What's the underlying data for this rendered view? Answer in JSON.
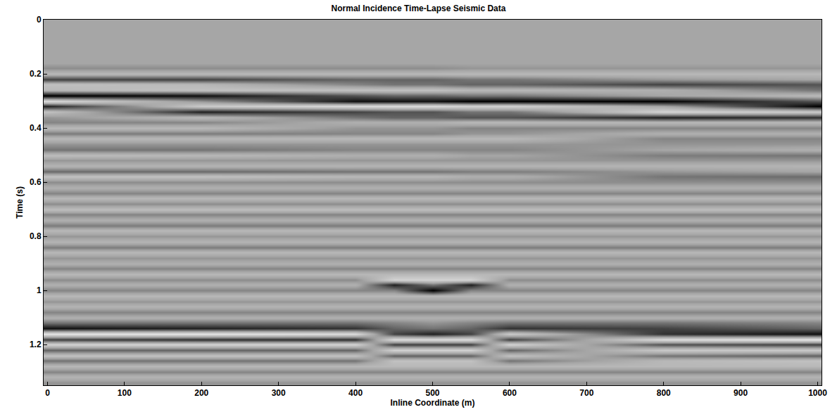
{
  "chart_data": {
    "type": "heatmap",
    "title": "Normal Incidence Time-Lapse Seismic Data",
    "x_label": "Inline Coordinate (m)",
    "y_label": "Time (s)",
    "xlim": [
      -5,
      1005
    ],
    "xticks": [
      0,
      100,
      200,
      300,
      400,
      500,
      600,
      700,
      800,
      900,
      1000
    ],
    "ylim": [
      1.35,
      0
    ],
    "yticks": [
      0,
      0.2,
      0.4,
      0.6,
      0.8,
      1,
      1.2
    ],
    "zlim": [
      -1,
      1
    ],
    "x": [
      0,
      200,
      400,
      450,
      500,
      550,
      600,
      800,
      1000
    ],
    "y": [
      0,
      0.02,
      0.04,
      0.06,
      0.08,
      0.1,
      0.12,
      0.14,
      0.16,
      0.18,
      0.2,
      0.22,
      0.24,
      0.26,
      0.28,
      0.3,
      0.32,
      0.34,
      0.36,
      0.38,
      0.4,
      0.42,
      0.44,
      0.46,
      0.48,
      0.5,
      0.52,
      0.54,
      0.56,
      0.58,
      0.6,
      0.62,
      0.64,
      0.66,
      0.68,
      0.7,
      0.72,
      0.74,
      0.76,
      0.78,
      0.8,
      0.82,
      0.84,
      0.86,
      0.88,
      0.9,
      0.92,
      0.94,
      0.96,
      0.98,
      1,
      1.02,
      1.04,
      1.06,
      1.08,
      1.1,
      1.12,
      1.14,
      1.16,
      1.18,
      1.2,
      1.22,
      1.24,
      1.26,
      1.28,
      1.3,
      1.32,
      1.34
    ],
    "z": [
      [
        0,
        0,
        0,
        0,
        0,
        0,
        0,
        0,
        0
      ],
      [
        0,
        0,
        0,
        0,
        0,
        0,
        0,
        0,
        0
      ],
      [
        0,
        0,
        0,
        0,
        0,
        0,
        0,
        0,
        0
      ],
      [
        0,
        0,
        0,
        0,
        0,
        0,
        0,
        0,
        0
      ],
      [
        0,
        0,
        0,
        0,
        0,
        0,
        0,
        0,
        0
      ],
      [
        0,
        0,
        0,
        0,
        0,
        0,
        0,
        0,
        0
      ],
      [
        0,
        0,
        0,
        0,
        0,
        0,
        0,
        0,
        0
      ],
      [
        0,
        0,
        0,
        0,
        0,
        0,
        0,
        0,
        0
      ],
      [
        0,
        0,
        0,
        0,
        0,
        0,
        0,
        0,
        0
      ],
      [
        0.15,
        0.15,
        0.15,
        0.15,
        0.15,
        0.1,
        0.1,
        0.1,
        0.1
      ],
      [
        -0.2,
        -0.2,
        -0.2,
        -0.2,
        -0.2,
        -0.2,
        -0.2,
        -0.2,
        -0.2
      ],
      [
        0.6,
        0.6,
        0.4,
        0.4,
        0.4,
        0.3,
        0.3,
        0.1,
        0
      ],
      [
        -0.3,
        -0.2,
        0.2,
        0.3,
        0.3,
        0.4,
        0.4,
        0.6,
        0.5
      ],
      [
        -0.2,
        -0.3,
        -0.3,
        -0.3,
        -0.3,
        -0.2,
        -0.2,
        -0.1,
        0.3
      ],
      [
        1,
        0.9,
        0.5,
        0.4,
        0.4,
        0.3,
        0.3,
        0,
        -0.2
      ],
      [
        -0.6,
        0.1,
        0.9,
        0.9,
        0.9,
        1,
        1,
        1,
        0.5
      ],
      [
        0.8,
        -0.4,
        -0.6,
        -0.6,
        -0.6,
        -0.5,
        -0.5,
        0,
        1
      ],
      [
        -0.3,
        0.8,
        0.6,
        0.5,
        0.5,
        0.3,
        0.3,
        -0.5,
        -0.4
      ],
      [
        0.1,
        -0.2,
        0.3,
        0.4,
        0.4,
        0.5,
        0.5,
        0.8,
        0.7
      ],
      [
        0.2,
        0.2,
        -0.1,
        -0.1,
        -0.1,
        -0.2,
        -0.2,
        -0.2,
        -0.2
      ],
      [
        -0.2,
        -0.2,
        0.1,
        0.1,
        0.1,
        0.2,
        0.2,
        0.2,
        0.2
      ],
      [
        0.25,
        0.25,
        0.2,
        0.2,
        0.2,
        0.1,
        0.1,
        -0.1,
        -0.1
      ],
      [
        -0.2,
        -0.2,
        -0.2,
        -0.2,
        -0.2,
        -0.2,
        -0.2,
        0.2,
        0.2
      ],
      [
        0.1,
        0.1,
        0.1,
        0.1,
        0.1,
        0.1,
        0.1,
        0.1,
        0.1
      ],
      [
        0.3,
        0.3,
        0.2,
        0.2,
        0.2,
        0.2,
        0.2,
        0,
        -0.1
      ],
      [
        -0.25,
        -0.2,
        -0.1,
        -0.1,
        -0.1,
        0,
        0,
        0.25,
        0.3
      ],
      [
        0.1,
        0.1,
        0.1,
        0.1,
        0.1,
        0.1,
        0.1,
        0.1,
        0.1
      ],
      [
        -0.15,
        -0.15,
        -0.15,
        -0.15,
        -0.15,
        -0.15,
        -0.15,
        -0.15,
        -0.15
      ],
      [
        0.35,
        0.35,
        0.3,
        0.3,
        0.3,
        0.25,
        0.25,
        0.1,
        0
      ],
      [
        -0.3,
        -0.3,
        -0.2,
        -0.2,
        -0.2,
        -0.1,
        -0.1,
        0.3,
        0.35
      ],
      [
        0.15,
        0.15,
        0.15,
        0.15,
        0.15,
        0.15,
        0.15,
        0.15,
        0.15
      ],
      [
        -0.1,
        -0.1,
        -0.1,
        -0.1,
        -0.1,
        -0.1,
        -0.1,
        -0.1,
        -0.1
      ],
      [
        0.2,
        0.2,
        0.2,
        0.2,
        0.2,
        0.2,
        0.2,
        0.2,
        0.2
      ],
      [
        -0.2,
        -0.2,
        -0.2,
        -0.2,
        -0.2,
        -0.2,
        -0.2,
        -0.2,
        -0.2
      ],
      [
        0.15,
        0.15,
        0.15,
        0.15,
        0.15,
        0.15,
        0.15,
        0.15,
        0.15
      ],
      [
        -0.25,
        -0.25,
        -0.25,
        -0.25,
        -0.25,
        -0.25,
        -0.25,
        -0.25,
        -0.25
      ],
      [
        0.2,
        0.2,
        0.2,
        0.2,
        0.2,
        0.2,
        0.2,
        0.2,
        0.2
      ],
      [
        -0.1,
        -0.1,
        -0.1,
        -0.1,
        -0.1,
        -0.1,
        -0.1,
        -0.1,
        -0.1
      ],
      [
        0.25,
        0.25,
        0.25,
        0.25,
        0.25,
        0.25,
        0.25,
        0.25,
        0.25
      ],
      [
        -0.2,
        -0.2,
        -0.2,
        -0.2,
        -0.2,
        -0.2,
        -0.2,
        -0.2,
        -0.2
      ],
      [
        0.1,
        0.1,
        0.1,
        0.1,
        0.1,
        0.1,
        0.1,
        0.1,
        0.1
      ],
      [
        -0.15,
        -0.15,
        -0.15,
        -0.15,
        -0.15,
        -0.15,
        -0.15,
        -0.15,
        -0.15
      ],
      [
        0.25,
        0.25,
        0.25,
        0.25,
        0.25,
        0.25,
        0.25,
        0.25,
        0.25
      ],
      [
        -0.2,
        -0.2,
        -0.2,
        -0.2,
        -0.2,
        -0.2,
        -0.2,
        -0.2,
        -0.2
      ],
      [
        0.1,
        0.1,
        0.1,
        0.1,
        0.1,
        0.1,
        0.1,
        0.1,
        0.1
      ],
      [
        -0.1,
        -0.1,
        -0.1,
        -0.1,
        -0.1,
        -0.1,
        -0.1,
        -0.1,
        -0.1
      ],
      [
        0.2,
        0.2,
        0.2,
        0.2,
        0.2,
        0.2,
        0.2,
        0.2,
        0.2
      ],
      [
        -0.2,
        -0.2,
        -0.2,
        -0.2,
        -0.2,
        -0.2,
        -0.2,
        -0.2,
        -0.2
      ],
      [
        0.15,
        0.15,
        0.15,
        -0.5,
        -0.5,
        -0.5,
        0.15,
        0.15,
        0.15
      ],
      [
        -0.1,
        -0.1,
        -0.1,
        0.8,
        0.3,
        0.8,
        -0.1,
        -0.1,
        -0.1
      ],
      [
        0.2,
        0.2,
        0.2,
        0.2,
        1,
        0.2,
        0.2,
        0.2,
        0.2
      ],
      [
        -0.2,
        -0.2,
        -0.2,
        -0.2,
        -0.2,
        -0.2,
        -0.2,
        -0.2,
        -0.2
      ],
      [
        0.1,
        0.1,
        0.1,
        0.1,
        0.1,
        0.1,
        0.1,
        0.1,
        0.1
      ],
      [
        -0.15,
        -0.15,
        -0.15,
        -0.15,
        -0.15,
        -0.15,
        -0.15,
        -0.15,
        -0.15
      ],
      [
        0.2,
        0.2,
        0.2,
        0.2,
        0.2,
        0.2,
        0.2,
        0.2,
        0.2
      ],
      [
        -0.1,
        -0.1,
        -0.1,
        -0.1,
        -0.1,
        -0.1,
        -0.1,
        -0.1,
        -0.1
      ],
      [
        0.3,
        0.3,
        0.3,
        0.2,
        0.1,
        0.2,
        0.3,
        0.3,
        0.2
      ],
      [
        0.9,
        0.8,
        0.7,
        0.4,
        0.3,
        0.4,
        0.7,
        0.6,
        0.4
      ],
      [
        -0.7,
        -0.7,
        -0.6,
        0.6,
        0.8,
        0.6,
        -0.4,
        0.7,
        0.9
      ],
      [
        0.6,
        0.7,
        0.7,
        -0.6,
        -0.6,
        -0.6,
        0.6,
        -0.6,
        -0.7
      ],
      [
        -0.5,
        -0.5,
        -0.5,
        0.6,
        0.6,
        0.6,
        -0.5,
        0.5,
        0.6
      ],
      [
        0.4,
        0.4,
        0.4,
        -0.5,
        -0.5,
        -0.5,
        0.4,
        -0.4,
        -0.4
      ],
      [
        -0.3,
        -0.3,
        -0.3,
        0.4,
        0.4,
        0.4,
        -0.3,
        0.3,
        0.4
      ],
      [
        0.3,
        0.3,
        0.3,
        -0.3,
        -0.3,
        -0.3,
        0.3,
        -0.2,
        -0.3
      ],
      [
        -0.2,
        -0.2,
        -0.2,
        -0.2,
        -0.2,
        -0.2,
        -0.2,
        -0.2,
        -0.2
      ],
      [
        0.2,
        0.2,
        0.2,
        0.2,
        0.2,
        0.2,
        0.2,
        0.2,
        0.2
      ],
      [
        -0.15,
        -0.15,
        -0.15,
        -0.15,
        -0.15,
        -0.15,
        -0.15,
        -0.15,
        -0.15
      ],
      [
        0.1,
        0.1,
        0.1,
        0.1,
        0.1,
        0.1,
        0.1,
        0.1,
        0.1
      ]
    ]
  }
}
